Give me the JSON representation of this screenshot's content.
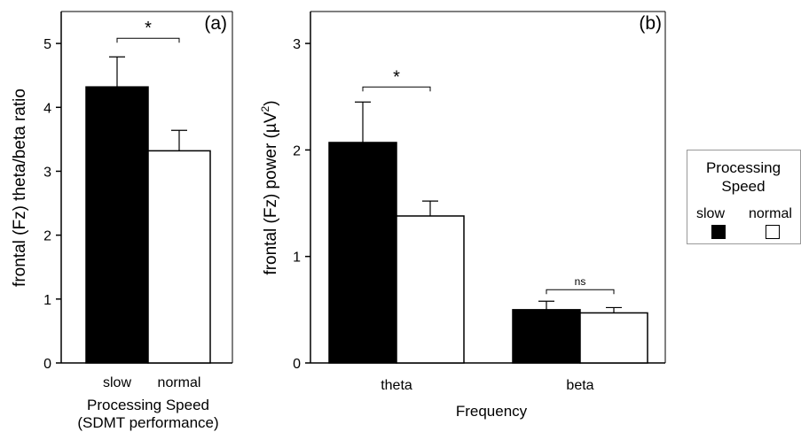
{
  "chart_data": [
    {
      "type": "bar",
      "panel_label": "(a)",
      "categories": [
        "slow",
        "normal"
      ],
      "values": [
        4.32,
        3.32
      ],
      "errors": [
        0.47,
        0.32
      ],
      "colors": [
        "#000000",
        "#ffffff"
      ],
      "ylabel": "frontal (Fz) theta/beta ratio",
      "xlabel": [
        "Processing Speed",
        "(SDMT performance)"
      ],
      "ylim": [
        0,
        5.5
      ],
      "yticks": [
        0,
        1,
        2,
        3,
        4,
        5
      ],
      "significance": [
        {
          "between": [
            "slow",
            "normal"
          ],
          "label": "*"
        }
      ]
    },
    {
      "type": "bar",
      "panel_label": "(b)",
      "categories": [
        "theta",
        "beta"
      ],
      "series": [
        {
          "name": "slow",
          "values": [
            2.07,
            0.5
          ],
          "errors": [
            0.38,
            0.08
          ],
          "color": "#000000"
        },
        {
          "name": "normal",
          "values": [
            1.38,
            0.47
          ],
          "errors": [
            0.14,
            0.05
          ],
          "color": "#ffffff"
        }
      ],
      "ylabel": "frontal (Fz) power (µV",
      "ylabel_sup": "2",
      "ylabel_end": ")",
      "xlabel": "Frequency",
      "ylim": [
        0,
        3.3
      ],
      "yticks": [
        0,
        1,
        2,
        3
      ],
      "significance": [
        {
          "category": "theta",
          "label": "*"
        },
        {
          "category": "beta",
          "label": "ns"
        }
      ]
    }
  ],
  "legend": {
    "title_line1": "Processing",
    "title_line2": "Speed",
    "items": [
      {
        "label": "slow",
        "color": "#000000"
      },
      {
        "label": "normal",
        "color": "#ffffff"
      }
    ]
  }
}
